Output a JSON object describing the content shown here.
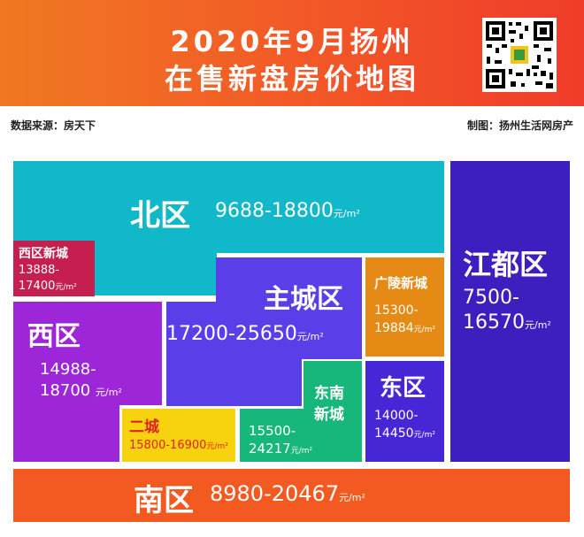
{
  "header": {
    "title_line1": "2020年9月扬州",
    "title_line2": "在售新盘房价地图"
  },
  "source": {
    "left": "数据来源：房天下",
    "right": "制图：扬州生活网房产"
  },
  "unit": "元/m²",
  "districts": {
    "beiqu": {
      "name": "北区",
      "price": "9688-18800",
      "color": "#11b8c9"
    },
    "xiquxincheng": {
      "name": "西区新城",
      "price_line1": "13888-",
      "price_line2": "17400",
      "color": "#c41f4f"
    },
    "xiqu": {
      "name": "西区",
      "price_line1": "14988-",
      "price_line2": "18700",
      "color": "#9d27d8"
    },
    "zhuchengqu": {
      "name": "主城区",
      "price": "17200-25650",
      "color": "#5a3fe8"
    },
    "guanglingxincheng": {
      "name": "广陵新城",
      "price_line1": "15300-",
      "price_line2": "19884",
      "color": "#e58a14"
    },
    "dongnanxincheng": {
      "name_line1": "东南",
      "name_line2": "新城",
      "price_line1": "15500-",
      "price_line2": "24217",
      "color": "#17b67a"
    },
    "erchen": {
      "name": "二城",
      "price": "15800-16900",
      "color": "#f7d20f",
      "text_color": "#e0231a"
    },
    "dongqu": {
      "name": "东区",
      "price_line1": "14000-",
      "price_line2": "14450",
      "color": "#4527d6"
    },
    "jiangduqu": {
      "name": "江都区",
      "price_line1": "7500-",
      "price_line2": "16570",
      "color": "#3d1fbf"
    },
    "nanqu": {
      "name": "南区",
      "price": "8980-20467",
      "color": "#f25a22"
    }
  }
}
